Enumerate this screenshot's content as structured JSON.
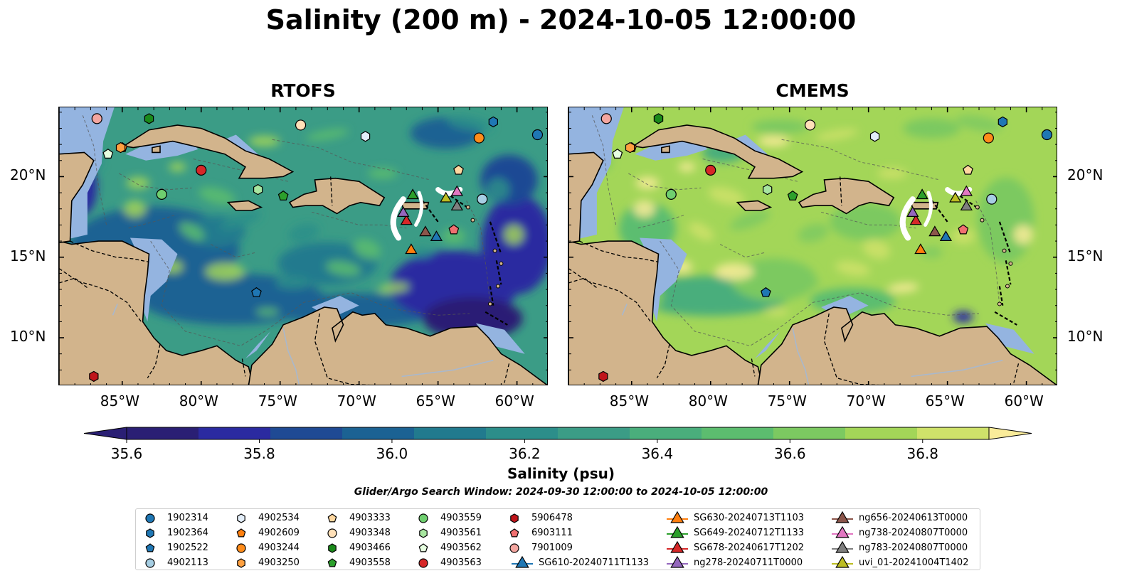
{
  "title": "Salinity (200 m) - 2024-10-05 12:00:00",
  "panels": [
    {
      "title": "RTOFS",
      "ocean_tone": "fresh"
    },
    {
      "title": "CMEMS",
      "ocean_tone": "salty"
    }
  ],
  "axes": {
    "lon_ticks": [
      "85°W",
      "80°W",
      "75°W",
      "70°W",
      "65°W",
      "60°W"
    ],
    "lat_ticks": [
      "20°N",
      "15°N",
      "10°N"
    ]
  },
  "colorbar": {
    "title": "Salinity (psu)",
    "tick_labels": [
      "35.6",
      "35.8",
      "36.0",
      "36.2",
      "36.4",
      "36.6",
      "36.8"
    ],
    "colors": [
      "#2a1f74",
      "#2b2aa0",
      "#1f4a94",
      "#1b6293",
      "#217a8e",
      "#2c8e8a",
      "#3b9c86",
      "#4aae7c",
      "#5cbd6f",
      "#7cc961",
      "#a3d658",
      "#cfe26a",
      "#faec9a"
    ],
    "extend": "both"
  },
  "search_window": "Glider/Argo Search Window: 2024-09-30 12:00:00 to 2024-10-05 12:00:00",
  "legend": [
    {
      "label": "1902314",
      "marker": "circle",
      "color": "#1f77b4"
    },
    {
      "label": "1902364",
      "marker": "hexagon",
      "color": "#1f77b4"
    },
    {
      "label": "1902522",
      "marker": "pentagon",
      "color": "#1f77b4"
    },
    {
      "label": "4902113",
      "marker": "circle",
      "color": "#a6cee3"
    },
    {
      "label": "4902534",
      "marker": "hexagon",
      "color": "#e3eef9"
    },
    {
      "label": "4902609",
      "marker": "pentagon",
      "color": "#ff7f0e"
    },
    {
      "label": "4903244",
      "marker": "circle",
      "color": "#ff8c1a"
    },
    {
      "label": "4903250",
      "marker": "hexagon",
      "color": "#ffa040"
    },
    {
      "label": "4903333",
      "marker": "pentagon",
      "color": "#ffd8a0"
    },
    {
      "label": "4903348",
      "marker": "circle",
      "color": "#ffe0b8"
    },
    {
      "label": "4903466",
      "marker": "hexagon",
      "color": "#1a8a1a"
    },
    {
      "label": "4903558",
      "marker": "pentagon",
      "color": "#2ca02c"
    },
    {
      "label": "4903559",
      "marker": "circle",
      "color": "#6fcf6f"
    },
    {
      "label": "4903561",
      "marker": "hexagon",
      "color": "#a8e6a0"
    },
    {
      "label": "4903562",
      "marker": "pentagon",
      "color": "#e6ffe0"
    },
    {
      "label": "4903563",
      "marker": "circle",
      "color": "#d62728"
    },
    {
      "label": "5906478",
      "marker": "hexagon",
      "color": "#c0151b"
    },
    {
      "label": "6903111",
      "marker": "pentagon",
      "color": "#f07070"
    },
    {
      "label": "7901009",
      "marker": "circle",
      "color": "#f4a6a0"
    },
    {
      "label": "SG610-20240711T1133",
      "marker": "triangle",
      "color": "#1f77b4"
    },
    {
      "label": "SG630-20240713T1103",
      "marker": "triangle",
      "color": "#ff7f0e"
    },
    {
      "label": "SG649-20240712T1133",
      "marker": "triangle",
      "color": "#2ca02c"
    },
    {
      "label": "SG678-20240617T1202",
      "marker": "triangle",
      "color": "#d62728"
    },
    {
      "label": "ng278-20240711T0000",
      "marker": "triangle",
      "color": "#9467bd"
    },
    {
      "label": "ng656-20240613T0000",
      "marker": "triangle",
      "color": "#8c564b"
    },
    {
      "label": "ng738-20240807T0000",
      "marker": "triangle",
      "color": "#e377c2"
    },
    {
      "label": "ng783-20240807T0000",
      "marker": "triangle",
      "color": "#7f7f7f"
    },
    {
      "label": "uvi_01-20241004T1402",
      "marker": "triangle",
      "color": "#bcbd22"
    }
  ],
  "observations": [
    {
      "id": "1902314",
      "lon": -58.7,
      "lat": 22.6
    },
    {
      "id": "1902364",
      "lon": -61.5,
      "lat": 23.4
    },
    {
      "id": "1902522",
      "lon": -76.5,
      "lat": 12.8
    },
    {
      "id": "4902113",
      "lon": -62.2,
      "lat": 18.6
    },
    {
      "id": "4902534",
      "lon": -69.6,
      "lat": 22.5
    },
    {
      "id": "4902609",
      "lon": -85.0,
      "lat": 21.8
    },
    {
      "id": "4903244",
      "lon": -62.4,
      "lat": 22.4
    },
    {
      "id": "4903250",
      "lon": -85.1,
      "lat": 21.8
    },
    {
      "id": "4903333",
      "lon": -63.7,
      "lat": 20.4
    },
    {
      "id": "4903348",
      "lon": -73.7,
      "lat": 23.2
    },
    {
      "id": "4903466",
      "lon": -83.3,
      "lat": 23.6
    },
    {
      "id": "4903558",
      "lon": -74.8,
      "lat": 18.8
    },
    {
      "id": "4903559",
      "lon": -82.5,
      "lat": 18.9
    },
    {
      "id": "4903561",
      "lon": -76.4,
      "lat": 19.2
    },
    {
      "id": "4903562",
      "lon": -85.9,
      "lat": 21.4
    },
    {
      "id": "4903563",
      "lon": -80.0,
      "lat": 20.4
    },
    {
      "id": "5906478",
      "lon": -86.8,
      "lat": 7.6
    },
    {
      "id": "6903111",
      "lon": -64.0,
      "lat": 16.7
    },
    {
      "id": "7901009",
      "lon": -86.6,
      "lat": 23.6
    },
    {
      "id": "SG610-20240711T1133",
      "lon": -65.1,
      "lat": 16.3
    },
    {
      "id": "SG630-20240713T1103",
      "lon": -66.7,
      "lat": 15.5
    },
    {
      "id": "SG649-20240712T1133",
      "lon": -66.6,
      "lat": 18.9
    },
    {
      "id": "SG678-20240617T1202",
      "lon": -67.0,
      "lat": 17.3
    },
    {
      "id": "ng278-20240711T0000",
      "lon": -67.2,
      "lat": 17.8
    },
    {
      "id": "ng656-20240613T0000",
      "lon": -65.8,
      "lat": 16.6
    },
    {
      "id": "ng738-20240807T0000",
      "lon": -63.8,
      "lat": 19.1
    },
    {
      "id": "ng783-20240807T0000",
      "lon": -63.8,
      "lat": 18.2
    },
    {
      "id": "uvi_01-20241004T1402",
      "lon": -64.5,
      "lat": 18.7
    }
  ]
}
